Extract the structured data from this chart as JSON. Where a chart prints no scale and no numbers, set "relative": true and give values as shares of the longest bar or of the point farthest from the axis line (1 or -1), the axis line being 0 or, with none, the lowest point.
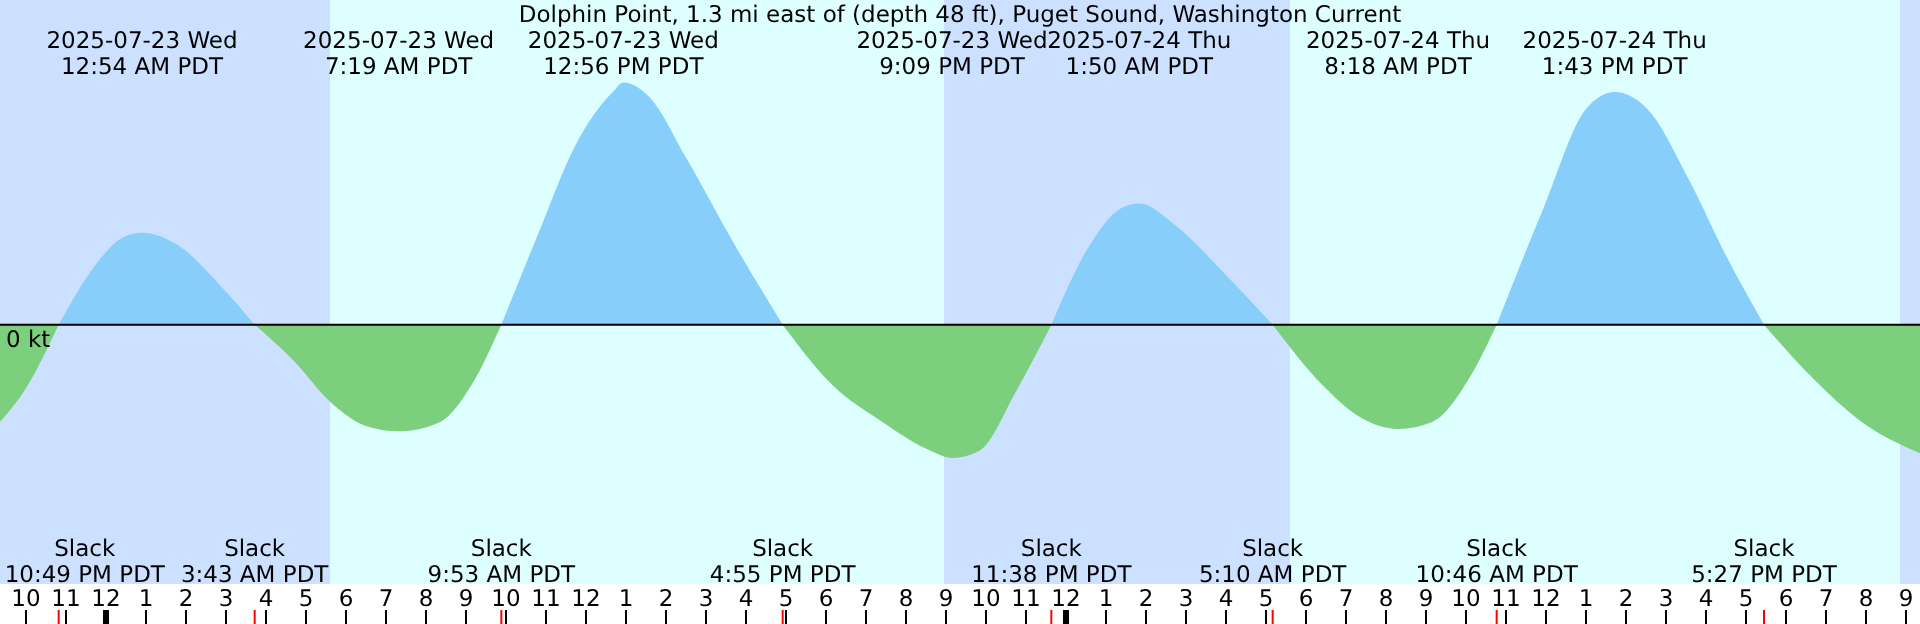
{
  "chart_data": {
    "type": "area",
    "relative": true,
    "title": "Dolphin Point, 1.3 mi east of (depth 48 ft), Puget Sound, Washington Current",
    "x": [
      "2025-07-22T21:21",
      "2025-07-22T21:58",
      "2025-07-22T22:49",
      "2025-07-22T23:48",
      "2025-07-23T00:25",
      "2025-07-23T00:54",
      "2025-07-23T01:47",
      "2025-07-23T02:52",
      "2025-07-23T03:43",
      "2025-07-23T04:42",
      "2025-07-23T05:37",
      "2025-07-23T06:32",
      "2025-07-23T07:19",
      "2025-07-23T08:22",
      "2025-07-23T09:08",
      "2025-07-23T09:53",
      "2025-07-23T10:49",
      "2025-07-23T11:44",
      "2025-07-23T12:40",
      "2025-07-23T12:56",
      "2025-07-23T13:35",
      "2025-07-23T14:30",
      "2025-07-23T15:43",
      "2025-07-23T16:55",
      "2025-07-23T18:10",
      "2025-07-23T19:24",
      "2025-07-23T20:37",
      "2025-07-23T21:09",
      "2025-07-23T21:50",
      "2025-07-23T22:46",
      "2025-07-23T23:38",
      "2025-07-24T00:36",
      "2025-07-24T01:22",
      "2025-07-24T01:50",
      "2025-07-24T02:44",
      "2025-07-24T03:58",
      "2025-07-24T05:10",
      "2025-07-24T06:25",
      "2025-07-24T07:20",
      "2025-07-24T08:18",
      "2025-07-24T09:10",
      "2025-07-24T10:05",
      "2025-07-24T10:46",
      "2025-07-24T11:56",
      "2025-07-24T13:00",
      "2025-07-24T13:43",
      "2025-07-24T14:32",
      "2025-07-24T15:36",
      "2025-07-24T16:31",
      "2025-07-24T17:27",
      "2025-07-24T18:40",
      "2025-07-24T19:53",
      "2025-07-24T21:21"
    ],
    "series": [
      {
        "color": "#87cefa",
        "values": [
          null,
          null,
          0,
          0.26,
          0.36,
          0.38,
          0.33,
          0.16,
          0,
          null,
          null,
          null,
          null,
          null,
          null,
          0,
          0.38,
          0.74,
          0.96,
          1,
          0.94,
          0.69,
          0.33,
          0,
          null,
          null,
          null,
          null,
          null,
          null,
          0,
          0.33,
          0.48,
          0.5,
          0.41,
          0.21,
          0,
          null,
          null,
          null,
          null,
          null,
          0,
          0.48,
          0.89,
          0.96,
          0.89,
          0.59,
          0.28,
          0,
          null,
          null,
          null
        ]
      },
      {
        "color": "#7ccf7c",
        "values": [
          -0.4,
          -0.27,
          0,
          null,
          null,
          null,
          null,
          null,
          0,
          -0.15,
          -0.32,
          -0.42,
          -0.44,
          -0.4,
          -0.25,
          0,
          null,
          null,
          null,
          null,
          null,
          null,
          null,
          0,
          -0.25,
          -0.4,
          -0.52,
          -0.55,
          -0.52,
          -0.27,
          0,
          null,
          null,
          null,
          null,
          null,
          0,
          -0.25,
          -0.38,
          -0.43,
          -0.4,
          -0.22,
          0,
          null,
          null,
          null,
          null,
          null,
          null,
          0,
          -0.22,
          -0.4,
          -0.53
        ]
      }
    ],
    "xlim": [
      "2025-07-22T21:21",
      "2025-07-24T21:21"
    ],
    "xticks": [
      {
        "value": "2025-07-22T22:00",
        "label": "10"
      },
      {
        "value": "2025-07-22T23:00",
        "label": "11"
      },
      {
        "value": "2025-07-23T00:00",
        "label": "12"
      },
      {
        "value": "2025-07-23T01:00",
        "label": "1"
      },
      {
        "value": "2025-07-23T02:00",
        "label": "2"
      },
      {
        "value": "2025-07-23T03:00",
        "label": "3"
      },
      {
        "value": "2025-07-23T04:00",
        "label": "4"
      },
      {
        "value": "2025-07-23T05:00",
        "label": "5"
      },
      {
        "value": "2025-07-23T06:00",
        "label": "6"
      },
      {
        "value": "2025-07-23T07:00",
        "label": "7"
      },
      {
        "value": "2025-07-23T08:00",
        "label": "8"
      },
      {
        "value": "2025-07-23T09:00",
        "label": "9"
      },
      {
        "value": "2025-07-23T10:00",
        "label": "10"
      },
      {
        "value": "2025-07-23T11:00",
        "label": "11"
      },
      {
        "value": "2025-07-23T12:00",
        "label": "12"
      },
      {
        "value": "2025-07-23T13:00",
        "label": "1"
      },
      {
        "value": "2025-07-23T14:00",
        "label": "2"
      },
      {
        "value": "2025-07-23T15:00",
        "label": "3"
      },
      {
        "value": "2025-07-23T16:00",
        "label": "4"
      },
      {
        "value": "2025-07-23T17:00",
        "label": "5"
      },
      {
        "value": "2025-07-23T18:00",
        "label": "6"
      },
      {
        "value": "2025-07-23T19:00",
        "label": "7"
      },
      {
        "value": "2025-07-23T20:00",
        "label": "8"
      },
      {
        "value": "2025-07-23T21:00",
        "label": "9"
      },
      {
        "value": "2025-07-23T22:00",
        "label": "10"
      },
      {
        "value": "2025-07-23T23:00",
        "label": "11"
      },
      {
        "value": "2025-07-24T00:00",
        "label": "12"
      },
      {
        "value": "2025-07-24T01:00",
        "label": "1"
      },
      {
        "value": "2025-07-24T02:00",
        "label": "2"
      },
      {
        "value": "2025-07-24T03:00",
        "label": "3"
      },
      {
        "value": "2025-07-24T04:00",
        "label": "4"
      },
      {
        "value": "2025-07-24T05:00",
        "label": "5"
      },
      {
        "value": "2025-07-24T06:00",
        "label": "6"
      },
      {
        "value": "2025-07-24T07:00",
        "label": "7"
      },
      {
        "value": "2025-07-24T08:00",
        "label": "8"
      },
      {
        "value": "2025-07-24T09:00",
        "label": "9"
      },
      {
        "value": "2025-07-24T10:00",
        "label": "10"
      },
      {
        "value": "2025-07-24T11:00",
        "label": "11"
      },
      {
        "value": "2025-07-24T12:00",
        "label": "12"
      },
      {
        "value": "2025-07-24T13:00",
        "label": "1"
      },
      {
        "value": "2025-07-24T14:00",
        "label": "2"
      },
      {
        "value": "2025-07-24T15:00",
        "label": "3"
      },
      {
        "value": "2025-07-24T16:00",
        "label": "4"
      },
      {
        "value": "2025-07-24T17:00",
        "label": "5"
      },
      {
        "value": "2025-07-24T18:00",
        "label": "6"
      },
      {
        "value": "2025-07-24T19:00",
        "label": "7"
      },
      {
        "value": "2025-07-24T20:00",
        "label": "8"
      },
      {
        "value": "2025-07-24T21:00",
        "label": "9"
      }
    ],
    "ref_lines": [
      {
        "axis": "y",
        "value": 0,
        "label": "0 kt",
        "color": "#000000"
      }
    ],
    "bands": [
      {
        "axis": "x",
        "from": "2025-07-22T21:21",
        "to": "2025-07-23T05:36",
        "color": "#cbe1ff"
      },
      {
        "axis": "x",
        "from": "2025-07-23T05:36",
        "to": "2025-07-23T20:57",
        "color": "#ddffff"
      },
      {
        "axis": "x",
        "from": "2025-07-23T20:57",
        "to": "2025-07-24T05:36",
        "color": "#cbe1ff"
      },
      {
        "axis": "x",
        "from": "2025-07-24T05:36",
        "to": "2025-07-24T20:51",
        "color": "#ddffff"
      },
      {
        "axis": "x",
        "from": "2025-07-24T20:51",
        "to": "2025-07-24T21:21",
        "color": "#cbe1ff"
      }
    ],
    "annotations": [
      "2025-07-23 Wed\n12:54 AM PDT",
      "2025-07-23 Wed\n7:19 AM PDT",
      "2025-07-23 Wed\n12:56 PM PDT",
      "2025-07-23 Wed\n9:09 PM PDT",
      "2025-07-24 Thu\n1:50 AM PDT",
      "2025-07-24 Thu\n8:18 AM PDT",
      "2025-07-24 Thu\n1:43 PM PDT",
      "Slack\n10:49 PM PDT",
      "Slack\n3:43 AM PDT",
      "Slack\n9:53 AM PDT",
      "Slack\n4:55 PM PDT",
      "Slack\n11:38 PM PDT",
      "Slack\n5:10 AM PDT",
      "Slack\n10:46 AM PDT",
      "Slack\n5:27 PM PDT"
    ]
  }
}
